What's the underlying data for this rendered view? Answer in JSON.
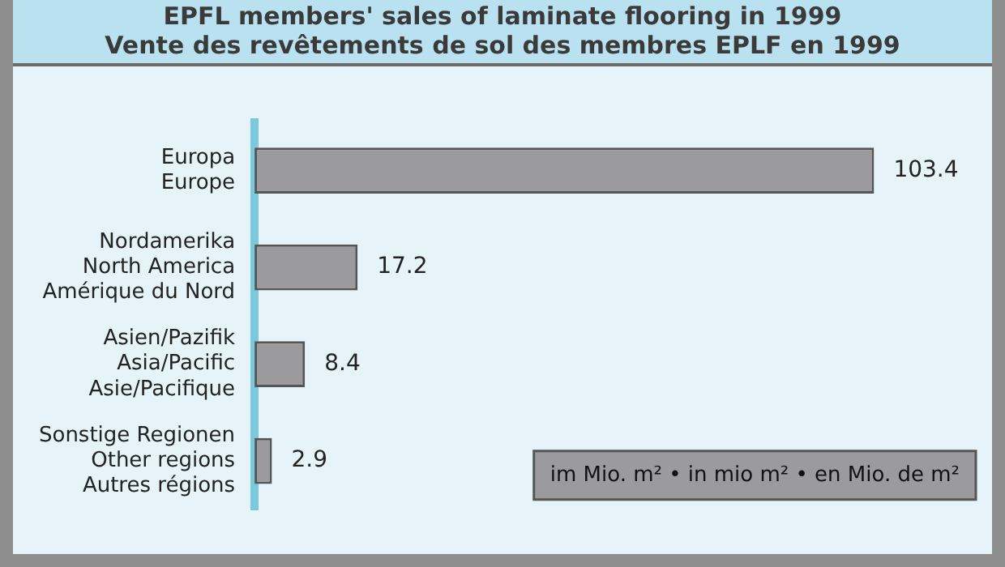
{
  "chart_data": {
    "type": "bar",
    "orientation": "horizontal",
    "title": "EPFL members' sales of laminate flooring in 1999\nVente des revêtements de sol des membres EPLF en 1999",
    "categories": [
      "Europa\nEurope",
      "Nordamerika\nNorth America\nAmérique du Nord",
      "Asien/Pazifik\nAsia/Pacific\nAsie/Pacifique",
      "Sonstige Regionen\nOther regions\nAutres régions"
    ],
    "values": [
      103.4,
      17.2,
      8.4,
      2.9
    ],
    "color": "#9b9b9e",
    "data_labels": true,
    "annotations": [
      "im Mio. m² • in mio m² • en Mio. de m²"
    ]
  }
}
